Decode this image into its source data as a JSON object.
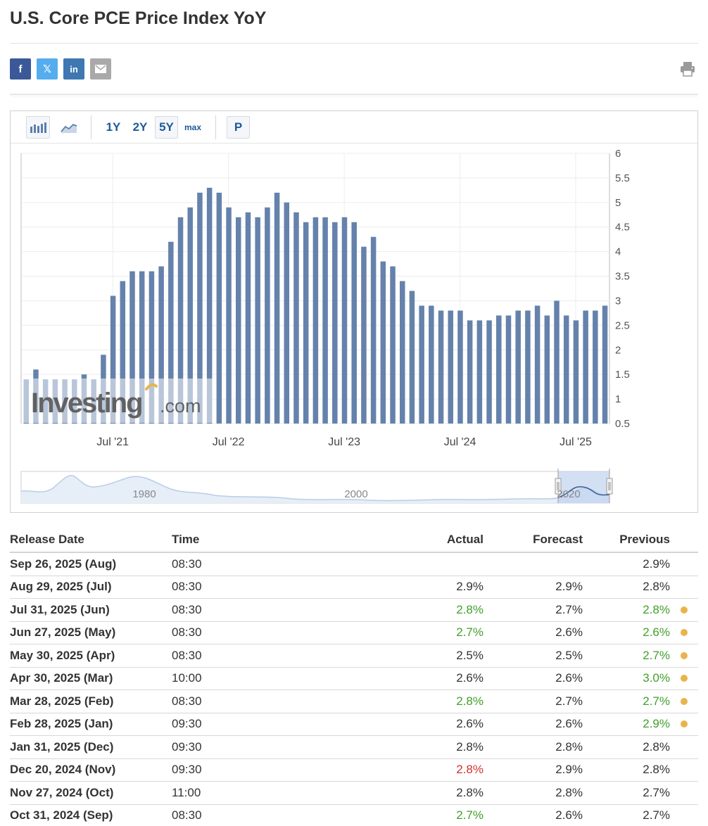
{
  "page_title": "U.S. Core PCE Price Index YoY",
  "share": {
    "facebook_icon": "f",
    "twitter_icon": "𝕏",
    "linkedin_icon": "in",
    "email_icon": "envelope-icon",
    "print_icon": "printer-icon"
  },
  "toolbar": {
    "bar_icon": "bar-chart-icon",
    "line_icon": "line-chart-icon",
    "range_1y": "1Y",
    "range_2y": "2Y",
    "range_5y": "5Y",
    "range_max": "max",
    "p_button": "P",
    "selected_range": "5Y"
  },
  "chart_data": {
    "type": "bar",
    "values": [
      1.4,
      1.6,
      1.4,
      1.4,
      1.4,
      1.4,
      1.5,
      1.4,
      1.9,
      3.1,
      3.4,
      3.6,
      3.6,
      3.6,
      3.7,
      4.2,
      4.7,
      4.9,
      5.2,
      5.3,
      5.2,
      4.9,
      4.7,
      4.8,
      4.7,
      4.9,
      5.2,
      5.0,
      4.8,
      4.6,
      4.7,
      4.7,
      4.6,
      4.7,
      4.6,
      4.1,
      4.3,
      3.8,
      3.7,
      3.4,
      3.2,
      2.9,
      2.9,
      2.8,
      2.8,
      2.8,
      2.6,
      2.6,
      2.6,
      2.7,
      2.7,
      2.8,
      2.8,
      2.9,
      2.7,
      3.0,
      2.7,
      2.6,
      2.8,
      2.8,
      2.9
    ],
    "x_tick_labels": [
      "Jul '21",
      "Jul '22",
      "Jul '23",
      "Jul '24",
      "Jul '25"
    ],
    "y_tick_labels": [
      "0.5",
      "1",
      "1.5",
      "2",
      "2.5",
      "3",
      "3.5",
      "4",
      "4.5",
      "5",
      "5.5",
      "6"
    ],
    "ylim": [
      0.5,
      6
    ],
    "grid": true,
    "bar_color": "#6482ab",
    "watermark_logo": "Investing.com",
    "navigator_labels": [
      "1980",
      "2000",
      "2020"
    ]
  },
  "table": {
    "headers": {
      "release_date": "Release Date",
      "time": "Time",
      "actual": "Actual",
      "forecast": "Forecast",
      "previous": "Previous"
    },
    "rows": [
      {
        "date": "Sep 26, 2025 (Aug)",
        "time": "08:30",
        "actual": "",
        "forecast": "",
        "previous": "2.9%",
        "actual_color": "black",
        "previous_color": "black",
        "revised": false
      },
      {
        "date": "Aug 29, 2025 (Jul)",
        "time": "08:30",
        "actual": "2.9%",
        "forecast": "2.9%",
        "previous": "2.8%",
        "actual_color": "black",
        "previous_color": "black",
        "revised": false
      },
      {
        "date": "Jul 31, 2025 (Jun)",
        "time": "08:30",
        "actual": "2.8%",
        "forecast": "2.7%",
        "previous": "2.8%",
        "actual_color": "green",
        "previous_color": "green",
        "revised": true
      },
      {
        "date": "Jun 27, 2025 (May)",
        "time": "08:30",
        "actual": "2.7%",
        "forecast": "2.6%",
        "previous": "2.6%",
        "actual_color": "green",
        "previous_color": "green",
        "revised": true
      },
      {
        "date": "May 30, 2025 (Apr)",
        "time": "08:30",
        "actual": "2.5%",
        "forecast": "2.5%",
        "previous": "2.7%",
        "actual_color": "black",
        "previous_color": "green",
        "revised": true
      },
      {
        "date": "Apr 30, 2025 (Mar)",
        "time": "10:00",
        "actual": "2.6%",
        "forecast": "2.6%",
        "previous": "3.0%",
        "actual_color": "black",
        "previous_color": "green",
        "revised": true
      },
      {
        "date": "Mar 28, 2025 (Feb)",
        "time": "08:30",
        "actual": "2.8%",
        "forecast": "2.7%",
        "previous": "2.7%",
        "actual_color": "green",
        "previous_color": "green",
        "revised": true
      },
      {
        "date": "Feb 28, 2025 (Jan)",
        "time": "09:30",
        "actual": "2.6%",
        "forecast": "2.6%",
        "previous": "2.9%",
        "actual_color": "black",
        "previous_color": "green",
        "revised": true
      },
      {
        "date": "Jan 31, 2025 (Dec)",
        "time": "09:30",
        "actual": "2.8%",
        "forecast": "2.8%",
        "previous": "2.8%",
        "actual_color": "black",
        "previous_color": "black",
        "revised": false
      },
      {
        "date": "Dec 20, 2024 (Nov)",
        "time": "09:30",
        "actual": "2.8%",
        "forecast": "2.9%",
        "previous": "2.8%",
        "actual_color": "red",
        "previous_color": "black",
        "revised": false
      },
      {
        "date": "Nov 27, 2024 (Oct)",
        "time": "11:00",
        "actual": "2.8%",
        "forecast": "2.8%",
        "previous": "2.7%",
        "actual_color": "black",
        "previous_color": "black",
        "revised": false
      },
      {
        "date": "Oct 31, 2024 (Sep)",
        "time": "08:30",
        "actual": "2.7%",
        "forecast": "2.6%",
        "previous": "2.7%",
        "actual_color": "green",
        "previous_color": "black",
        "revised": false
      }
    ]
  }
}
